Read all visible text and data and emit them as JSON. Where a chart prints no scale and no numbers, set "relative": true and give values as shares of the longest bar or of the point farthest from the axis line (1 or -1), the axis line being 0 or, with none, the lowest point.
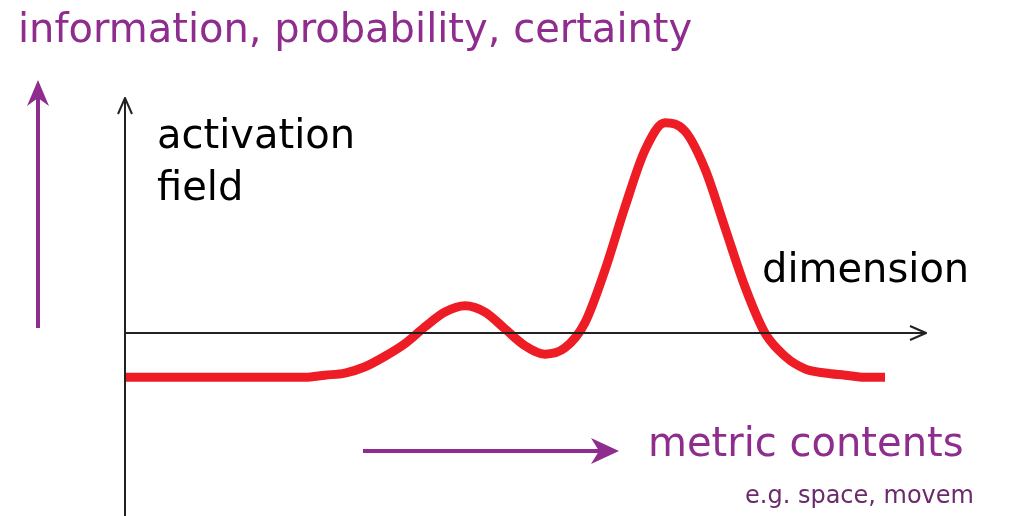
{
  "chart_data": {
    "type": "line",
    "title": "information, probability, certainty",
    "ylabel": "activation field",
    "xlabel": "dimension",
    "relative": true,
    "legend": false,
    "marker": "none",
    "line_style": "solid",
    "annotations": [
      "metric contents",
      "e.g. space, movem"
    ],
    "categories": [
      null,
      null,
      null,
      null,
      null,
      null,
      null,
      null,
      null,
      null,
      null,
      null,
      null,
      null,
      null,
      null,
      null,
      null,
      null,
      null,
      null,
      null,
      null,
      null,
      null,
      null,
      null,
      null,
      null,
      null,
      null,
      null,
      null,
      null,
      null,
      null,
      null,
      null,
      null
    ],
    "series": [
      {
        "color": "#ee1c25",
        "values": [
          -0.21,
          -0.21,
          -0.21,
          -0.21,
          -0.21,
          -0.21,
          -0.21,
          -0.21,
          -0.21,
          -0.21,
          -0.2,
          -0.19,
          -0.16,
          -0.11,
          -0.05,
          0.03,
          0.1,
          0.13,
          0.1,
          0.02,
          -0.06,
          -0.1,
          -0.07,
          0.05,
          0.3,
          0.6,
          0.87,
          1,
          0.96,
          0.78,
          0.5,
          0.22,
          0,
          -0.11,
          -0.17,
          -0.19,
          -0.2,
          -0.21,
          -0.21
        ]
      }
    ]
  }
}
